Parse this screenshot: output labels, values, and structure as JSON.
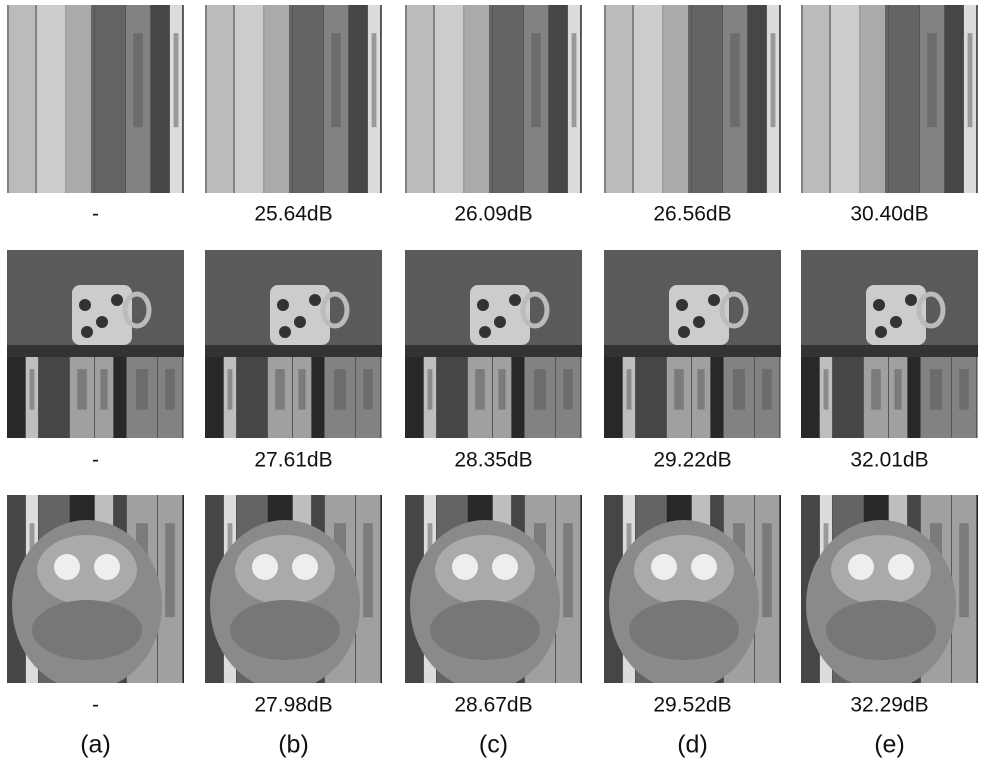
{
  "rows": [
    {
      "captions": [
        "-",
        "25.64dB",
        "26.09dB",
        "26.56dB",
        "30.40dB"
      ]
    },
    {
      "captions": [
        "-",
        "27.61dB",
        "28.35dB",
        "29.22dB",
        "32.01dB"
      ]
    },
    {
      "captions": [
        "-",
        "27.98dB",
        "28.67dB",
        "29.52dB",
        "32.29dB"
      ]
    }
  ],
  "column_labels": [
    "(a)",
    "(b)",
    "(c)",
    "(d)",
    "(e)"
  ]
}
